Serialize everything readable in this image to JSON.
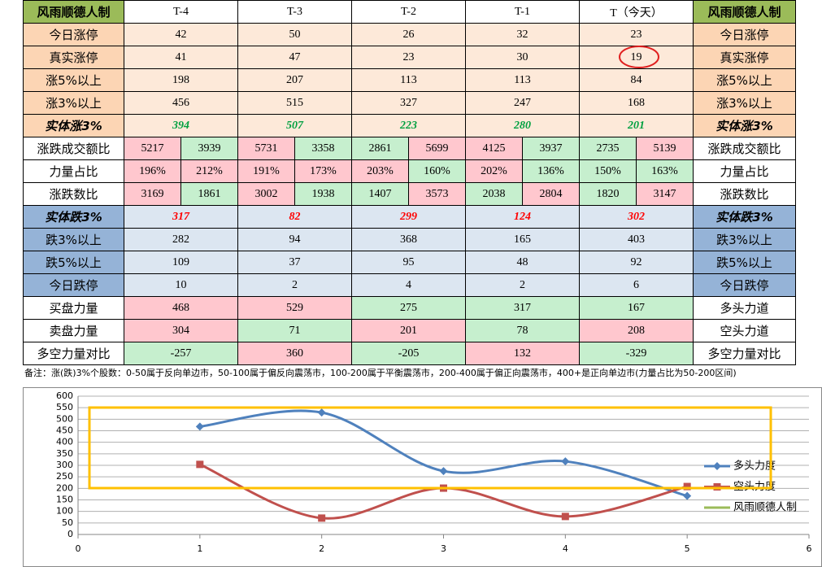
{
  "table": {
    "header": [
      "风雨顺德人制",
      "T-4",
      "T-3",
      "T-2",
      "T-1",
      "T（今天）",
      "风雨顺德人制"
    ],
    "rows": [
      {
        "label": "今日涨停",
        "cells": [
          "42",
          "50",
          "26",
          "32",
          "23"
        ],
        "right": "今日涨停"
      },
      {
        "label": "真实涨停",
        "cells": [
          "41",
          "47",
          "23",
          "30",
          "19"
        ],
        "right": "真实涨停"
      },
      {
        "label": "涨5%以上",
        "cells": [
          "198",
          "207",
          "113",
          "113",
          "84"
        ],
        "right": "涨5%以上"
      },
      {
        "label": "涨3%以上",
        "cells": [
          "456",
          "515",
          "327",
          "247",
          "168"
        ],
        "right": "涨3%以上"
      },
      {
        "label": "实体涨3%",
        "cells": [
          "394",
          "507",
          "223",
          "280",
          "201"
        ],
        "right": "实体涨3%"
      },
      {
        "label": "涨跌成交额比",
        "cells": [
          "5217",
          "3939",
          "5731",
          "3358",
          "2861",
          "5699",
          "4125",
          "3937",
          "2735",
          "5139"
        ],
        "right": "涨跌成交额比",
        "fills": [
          "#ffc7ce",
          "#c6efce",
          "#ffc7ce",
          "#c6efce",
          "#c6efce",
          "#ffc7ce",
          "#ffc7ce",
          "#c6efce",
          "#c6efce",
          "#ffc7ce"
        ]
      },
      {
        "label": "力量占比",
        "cells": [
          "196%",
          "212%",
          "191%",
          "173%",
          "203%",
          "160%",
          "202%",
          "136%",
          "150%",
          "163%"
        ],
        "right": "力量占比",
        "fills": [
          "#ffc7ce",
          "#ffc7ce",
          "#ffc7ce",
          "#ffc7ce",
          "#ffc7ce",
          "#c6efce",
          "#ffc7ce",
          "#c6efce",
          "#c6efce",
          "#c6efce"
        ]
      },
      {
        "label": "涨跌数比",
        "cells": [
          "3169",
          "1861",
          "3002",
          "1938",
          "1407",
          "3573",
          "2038",
          "2804",
          "1820",
          "3147"
        ],
        "right": "涨跌数比",
        "fills": [
          "#ffc7ce",
          "#c6efce",
          "#ffc7ce",
          "#c6efce",
          "#c6efce",
          "#ffc7ce",
          "#c6efce",
          "#ffc7ce",
          "#c6efce",
          "#ffc7ce"
        ]
      },
      {
        "label": "实体跌3%",
        "cells": [
          "317",
          "82",
          "299",
          "124",
          "302"
        ],
        "right": "实体跌3%"
      },
      {
        "label": "跌3%以上",
        "cells": [
          "282",
          "94",
          "368",
          "165",
          "403"
        ],
        "right": "跌3%以上"
      },
      {
        "label": "跌5%以上",
        "cells": [
          "109",
          "37",
          "95",
          "48",
          "92"
        ],
        "right": "跌5%以上"
      },
      {
        "label": "今日跌停",
        "cells": [
          "10",
          "2",
          "4",
          "2",
          "6"
        ],
        "right": "今日跌停"
      },
      {
        "label": "买盘力量",
        "cells": [
          "468",
          "529",
          "275",
          "317",
          "167"
        ],
        "right": "多头力道",
        "fills": [
          "#ffc7ce",
          "#ffc7ce",
          "#c6efce",
          "#c6efce",
          "#c6efce"
        ]
      },
      {
        "label": "卖盘力量",
        "cells": [
          "304",
          "71",
          "201",
          "78",
          "208"
        ],
        "right": "空头力道",
        "fills": [
          "#ffc7ce",
          "#c6efce",
          "#ffc7ce",
          "#c6efce",
          "#ffc7ce"
        ]
      },
      {
        "label": "多空力量对比",
        "cells": [
          "-257",
          "360",
          "-205",
          "132",
          "-329"
        ],
        "right": "多空力量对比",
        "fills": [
          "#c6efce",
          "#ffc7ce",
          "#c6efce",
          "#ffc7ce",
          "#c6efce"
        ]
      }
    ]
  },
  "note": "备注：涨(跌)3%个股数：0-50属于反向单边市，50-100属于偏反向震荡市，100-200属于平衡震荡市，200-400属于偏正向震荡市，400+是正向单边市(力量占比为50-200区间)",
  "chart_data": {
    "type": "line",
    "x": [
      1,
      2,
      3,
      4,
      5
    ],
    "series": [
      {
        "name": "多头力度",
        "color": "#4f81bd",
        "marker": "diamond",
        "values": [
          468,
          529,
          275,
          317,
          167
        ]
      },
      {
        "name": "空头力度",
        "color": "#c0504d",
        "marker": "square",
        "values": [
          304,
          71,
          201,
          78,
          208
        ]
      },
      {
        "name": "风雨顺德人制",
        "color": "#9bbb59",
        "values": [
          null,
          null,
          null,
          null,
          null
        ]
      }
    ],
    "xlim": [
      0,
      6
    ],
    "xticks": [
      0,
      1,
      2,
      3,
      4,
      5,
      6
    ],
    "ylim": [
      0,
      600
    ],
    "yticks": [
      0,
      50,
      100,
      150,
      200,
      250,
      300,
      350,
      400,
      450,
      500,
      550,
      600
    ],
    "grid": true,
    "smooth": true
  }
}
